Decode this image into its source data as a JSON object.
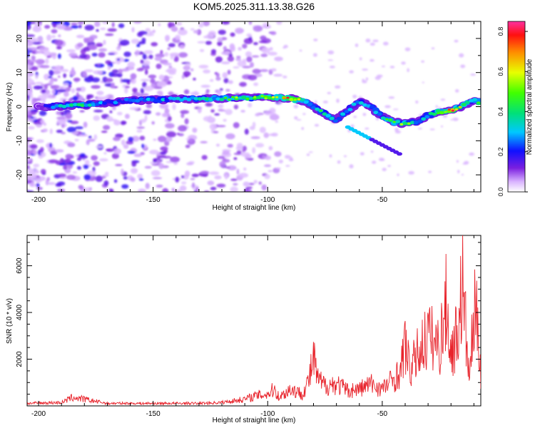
{
  "title": "KOM5.2025.311.13.38.G26",
  "chart_data": [
    {
      "type": "heatmap",
      "xlabel": "Height of straight line (km)",
      "ylabel": "Frequency (Hz)",
      "xlim": [
        -205,
        -7
      ],
      "ylim": [
        -25,
        25
      ],
      "xticks": [
        -200,
        -150,
        -100,
        -50
      ],
      "yticks": [
        -20,
        -10,
        0,
        10,
        20
      ],
      "colorbar": {
        "label": "Normalized spectral amplitude",
        "range": [
          0,
          0.85
        ],
        "ticks": [
          0.0,
          0.2,
          0.4,
          0.6,
          0.8
        ]
      },
      "ridge": {
        "x": [
          -200,
          -190,
          -180,
          -170,
          -160,
          -150,
          -140,
          -130,
          -120,
          -110,
          -100,
          -95,
          -90,
          -85,
          -80,
          -75,
          -70,
          -65,
          -60,
          -55,
          -50,
          -45,
          -40,
          -35,
          -30,
          -25,
          -20,
          -15,
          -10,
          -7
        ],
        "freq": [
          0.0,
          0.2,
          0.5,
          1.2,
          1.8,
          2.0,
          2.2,
          2.3,
          2.4,
          2.6,
          2.7,
          2.6,
          2.3,
          1.8,
          0.0,
          -2.0,
          -4.0,
          -1.0,
          1.5,
          0.0,
          -3.0,
          -4.5,
          -5.0,
          -4.5,
          -2.5,
          -1.5,
          -1.0,
          0.0,
          2.0,
          1.0
        ],
        "amplitude": [
          0.15,
          0.4,
          0.45,
          0.3,
          0.3,
          0.35,
          0.35,
          0.4,
          0.45,
          0.5,
          0.55,
          0.5,
          0.75,
          0.45,
          0.4,
          0.4,
          0.35,
          0.35,
          0.35,
          0.35,
          0.4,
          0.45,
          0.5,
          0.4,
          0.4,
          0.5,
          0.75,
          0.5,
          0.4,
          0.6
        ]
      }
    },
    {
      "type": "line",
      "xlabel": "Height of straight line (km)",
      "ylabel": "SNR (10 * v/v)",
      "xlim": [
        -205,
        -7
      ],
      "ylim": [
        0,
        7300
      ],
      "xticks": [
        -200,
        -150,
        -100,
        -50
      ],
      "yticks": [
        2000,
        4000,
        6000
      ],
      "series": [
        {
          "name": "SNR",
          "color": "#e8242c",
          "x": [
            -205,
            -190,
            -185,
            -170,
            -150,
            -130,
            -120,
            -110,
            -105,
            -100,
            -97,
            -95,
            -90,
            -85,
            -82,
            -80,
            -78,
            -75,
            -70,
            -65,
            -60,
            -55,
            -50,
            -45,
            -42,
            -40,
            -38,
            -35,
            -30,
            -25,
            -22,
            -20,
            -17,
            -15,
            -12,
            -10,
            -8,
            -7
          ],
          "y": [
            150,
            200,
            500,
            150,
            150,
            150,
            200,
            400,
            600,
            700,
            1000,
            500,
            1000,
            700,
            1500,
            2800,
            1500,
            1200,
            1300,
            900,
            1000,
            1300,
            1000,
            1600,
            2000,
            3800,
            2000,
            3000,
            4200,
            3500,
            6100,
            3000,
            4500,
            7200,
            1500,
            5500,
            4500,
            2000
          ]
        }
      ]
    }
  ]
}
